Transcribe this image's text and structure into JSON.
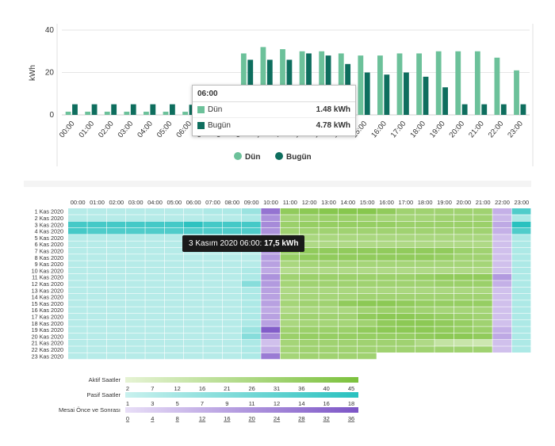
{
  "colors": {
    "dun": "#6cc19a",
    "bugun": "#0e6e5e",
    "pasif": "#a6e8e2",
    "pasif_dark": "#29c1bf",
    "aktif": "#a6d86e",
    "aktif_dark": "#7bc13c",
    "mesai": "#b69ae0",
    "mesai_dark": "#7c55c6"
  },
  "chart_data": [
    {
      "type": "bar",
      "ylabel": "kWh",
      "ylim": [
        0,
        40
      ],
      "yticks": [
        0,
        20,
        40
      ],
      "categories": [
        "00:00",
        "01:00",
        "02:00",
        "03:00",
        "04:00",
        "05:00",
        "06:00",
        "07:00",
        "08:00",
        "09:00",
        "10:00",
        "11:00",
        "12:00",
        "13:00",
        "14:00",
        "15:00",
        "16:00",
        "17:00",
        "18:00",
        "19:00",
        "20:00",
        "21:00",
        "22:00",
        "23:00"
      ],
      "series": [
        {
          "name": "Dün",
          "values": [
            1.5,
            1.5,
            1.5,
            1.5,
            1.5,
            1.5,
            1.48,
            2,
            2,
            29,
            32,
            31,
            30,
            30,
            29,
            28,
            28,
            29,
            29,
            30,
            30,
            30,
            27,
            21
          ]
        },
        {
          "name": "Bugün",
          "values": [
            5,
            5,
            5,
            5,
            5,
            5,
            4.78,
            5,
            5,
            26,
            26,
            26,
            29,
            28,
            24,
            20,
            19,
            20,
            18,
            13,
            5,
            5,
            5,
            5
          ]
        }
      ],
      "legend": "bottom-center",
      "grid": true,
      "tooltip": {
        "title": "06:00",
        "rows": [
          {
            "label": "Dün",
            "value": "1.48 kWh"
          },
          {
            "label": "Bugün",
            "value": "4.78 kWh"
          }
        ]
      }
    },
    {
      "type": "heatmap",
      "x": [
        "00:00",
        "01:00",
        "02:00",
        "03:00",
        "04:00",
        "05:00",
        "06:00",
        "07:00",
        "08:00",
        "09:00",
        "10:00",
        "11:00",
        "12:00",
        "13:00",
        "14:00",
        "15:00",
        "16:00",
        "17:00",
        "18:00",
        "19:00",
        "20:00",
        "21:00",
        "22:00",
        "23:00"
      ],
      "y": [
        "1 Kas 2020",
        "2 Kas 2020",
        "3 Kas 2020",
        "4 Kas 2020",
        "5 Kas 2020",
        "6 Kas 2020",
        "7 Kas 2020",
        "8 Kas 2020",
        "9 Kas 2020",
        "10 Kas 2020",
        "11 Kas 2020",
        "12 Kas 2020",
        "13 Kas 2020",
        "14 Kas 2020",
        "15 Kas 2020",
        "16 Kas 2020",
        "17 Kas 2020",
        "18 Kas 2020",
        "19 Kas 2020",
        "20 Kas 2020",
        "21 Kas 2020",
        "22 Kas 2020",
        "23 Kas 2020"
      ],
      "hour_groups": {
        "pasif": [
          0,
          1,
          2,
          3,
          4,
          5,
          6,
          7,
          8,
          9,
          23
        ],
        "mesai": [
          10,
          22
        ],
        "aktif": [
          11,
          12,
          13,
          14,
          15,
          16,
          17,
          18,
          19,
          20,
          21
        ]
      },
      "values": [
        [
          3,
          3,
          3,
          3,
          3,
          3,
          3,
          4,
          4,
          6,
          28,
          36,
          38,
          40,
          40,
          40,
          36,
          30,
          30,
          30,
          30,
          30,
          12,
          14
        ],
        [
          3,
          3,
          3,
          3,
          3,
          3,
          3,
          3,
          3,
          4,
          20,
          28,
          30,
          32,
          32,
          30,
          28,
          28,
          28,
          30,
          30,
          30,
          10,
          4
        ],
        [
          15,
          15,
          15,
          15,
          15,
          15,
          17.5,
          15,
          15,
          15,
          22,
          32,
          34,
          34,
          34,
          34,
          34,
          32,
          32,
          32,
          32,
          32,
          14,
          18
        ],
        [
          15,
          14,
          14,
          14,
          14,
          14,
          14,
          14,
          14,
          14,
          20,
          30,
          30,
          30,
          30,
          30,
          30,
          30,
          30,
          30,
          30,
          30,
          12,
          14
        ],
        [
          3,
          3,
          3,
          3,
          3,
          3,
          3,
          3,
          3,
          3,
          16,
          24,
          26,
          26,
          26,
          26,
          26,
          26,
          26,
          26,
          26,
          26,
          8,
          4
        ],
        [
          3,
          3,
          3,
          3,
          3,
          3,
          3,
          3,
          3,
          3,
          16,
          22,
          24,
          24,
          24,
          24,
          24,
          24,
          24,
          24,
          24,
          24,
          8,
          4
        ],
        [
          3,
          3,
          3,
          3,
          3,
          3,
          3,
          3,
          3,
          3,
          18,
          34,
          36,
          36,
          36,
          36,
          36,
          36,
          36,
          36,
          32,
          30,
          8,
          4
        ],
        [
          3,
          3,
          3,
          3,
          3,
          3,
          3,
          3,
          3,
          3,
          18,
          34,
          36,
          36,
          36,
          36,
          36,
          36,
          36,
          34,
          30,
          30,
          8,
          4
        ],
        [
          3,
          3,
          3,
          3,
          3,
          3,
          3,
          3,
          3,
          3,
          16,
          26,
          28,
          28,
          28,
          28,
          28,
          28,
          28,
          28,
          28,
          28,
          8,
          4
        ],
        [
          3,
          3,
          3,
          3,
          3,
          3,
          3,
          3,
          3,
          4,
          14,
          22,
          24,
          24,
          24,
          24,
          24,
          24,
          24,
          24,
          24,
          24,
          8,
          4
        ],
        [
          3,
          3,
          3,
          3,
          3,
          3,
          3,
          3,
          3,
          4,
          20,
          30,
          32,
          32,
          32,
          32,
          32,
          32,
          34,
          36,
          36,
          36,
          18,
          4
        ],
        [
          3,
          3,
          3,
          3,
          3,
          3,
          3,
          3,
          3,
          8,
          18,
          28,
          30,
          30,
          30,
          30,
          30,
          30,
          30,
          32,
          32,
          32,
          12,
          4
        ],
        [
          3,
          3,
          3,
          3,
          3,
          3,
          3,
          3,
          3,
          4,
          16,
          24,
          26,
          26,
          26,
          26,
          26,
          26,
          26,
          26,
          26,
          26,
          8,
          4
        ],
        [
          3,
          3,
          3,
          3,
          3,
          3,
          3,
          3,
          3,
          4,
          16,
          26,
          28,
          28,
          28,
          30,
          30,
          30,
          30,
          30,
          30,
          30,
          8,
          4
        ],
        [
          3,
          3,
          3,
          3,
          3,
          3,
          3,
          3,
          3,
          4,
          16,
          28,
          30,
          30,
          36,
          38,
          38,
          36,
          34,
          34,
          34,
          34,
          8,
          4
        ],
        [
          3,
          3,
          3,
          3,
          3,
          3,
          3,
          3,
          3,
          4,
          14,
          24,
          26,
          26,
          26,
          30,
          32,
          32,
          30,
          28,
          28,
          28,
          8,
          4
        ],
        [
          3,
          3,
          3,
          3,
          3,
          3,
          3,
          3,
          3,
          4,
          16,
          28,
          30,
          30,
          30,
          36,
          38,
          38,
          36,
          34,
          32,
          30,
          8,
          4
        ],
        [
          3,
          3,
          3,
          3,
          3,
          3,
          3,
          3,
          3,
          4,
          16,
          26,
          28,
          28,
          28,
          30,
          36,
          38,
          38,
          36,
          34,
          30,
          8,
          4
        ],
        [
          3,
          3,
          3,
          3,
          3,
          3,
          3,
          3,
          3,
          6,
          34,
          30,
          32,
          32,
          32,
          36,
          38,
          38,
          38,
          36,
          34,
          32,
          12,
          4
        ],
        [
          3,
          3,
          3,
          3,
          3,
          3,
          3,
          3,
          3,
          8,
          22,
          32,
          34,
          34,
          34,
          34,
          34,
          34,
          36,
          38,
          38,
          36,
          14,
          4
        ],
        [
          3,
          3,
          3,
          3,
          3,
          3,
          3,
          3,
          3,
          4,
          8,
          28,
          30,
          30,
          30,
          30,
          30,
          30,
          24,
          16,
          14,
          12,
          8,
          4
        ],
        [
          3,
          3,
          3,
          3,
          3,
          3,
          3,
          3,
          3,
          4,
          12,
          28,
          30,
          30,
          30,
          30,
          30,
          30,
          30,
          30,
          30,
          30,
          8,
          4
        ],
        [
          3,
          3,
          3,
          3,
          3,
          3,
          3,
          3,
          3,
          4,
          26,
          28,
          30,
          30,
          30,
          30,
          null,
          null,
          null,
          null,
          null,
          null,
          null,
          null
        ]
      ],
      "tooltip": {
        "label": "3 Kasım 2020 06:00: ",
        "value": "17,5 kWh"
      },
      "legend": {
        "aktif": {
          "title": "Aktif Saatler",
          "ticks": [
            "2",
            "7",
            "12",
            "16",
            "21",
            "26",
            "31",
            "36",
            "40",
            "45"
          ]
        },
        "pasif": {
          "title": "Pasif Saatler",
          "ticks": [
            "1",
            "3",
            "5",
            "7",
            "9",
            "11",
            "12",
            "14",
            "16",
            "18"
          ]
        },
        "mesai": {
          "title": "Mesai Önce ve Sonrası",
          "ticks": [
            "0",
            "4",
            "8",
            "12",
            "16",
            "20",
            "24",
            "28",
            "32",
            "36"
          ]
        }
      }
    }
  ]
}
